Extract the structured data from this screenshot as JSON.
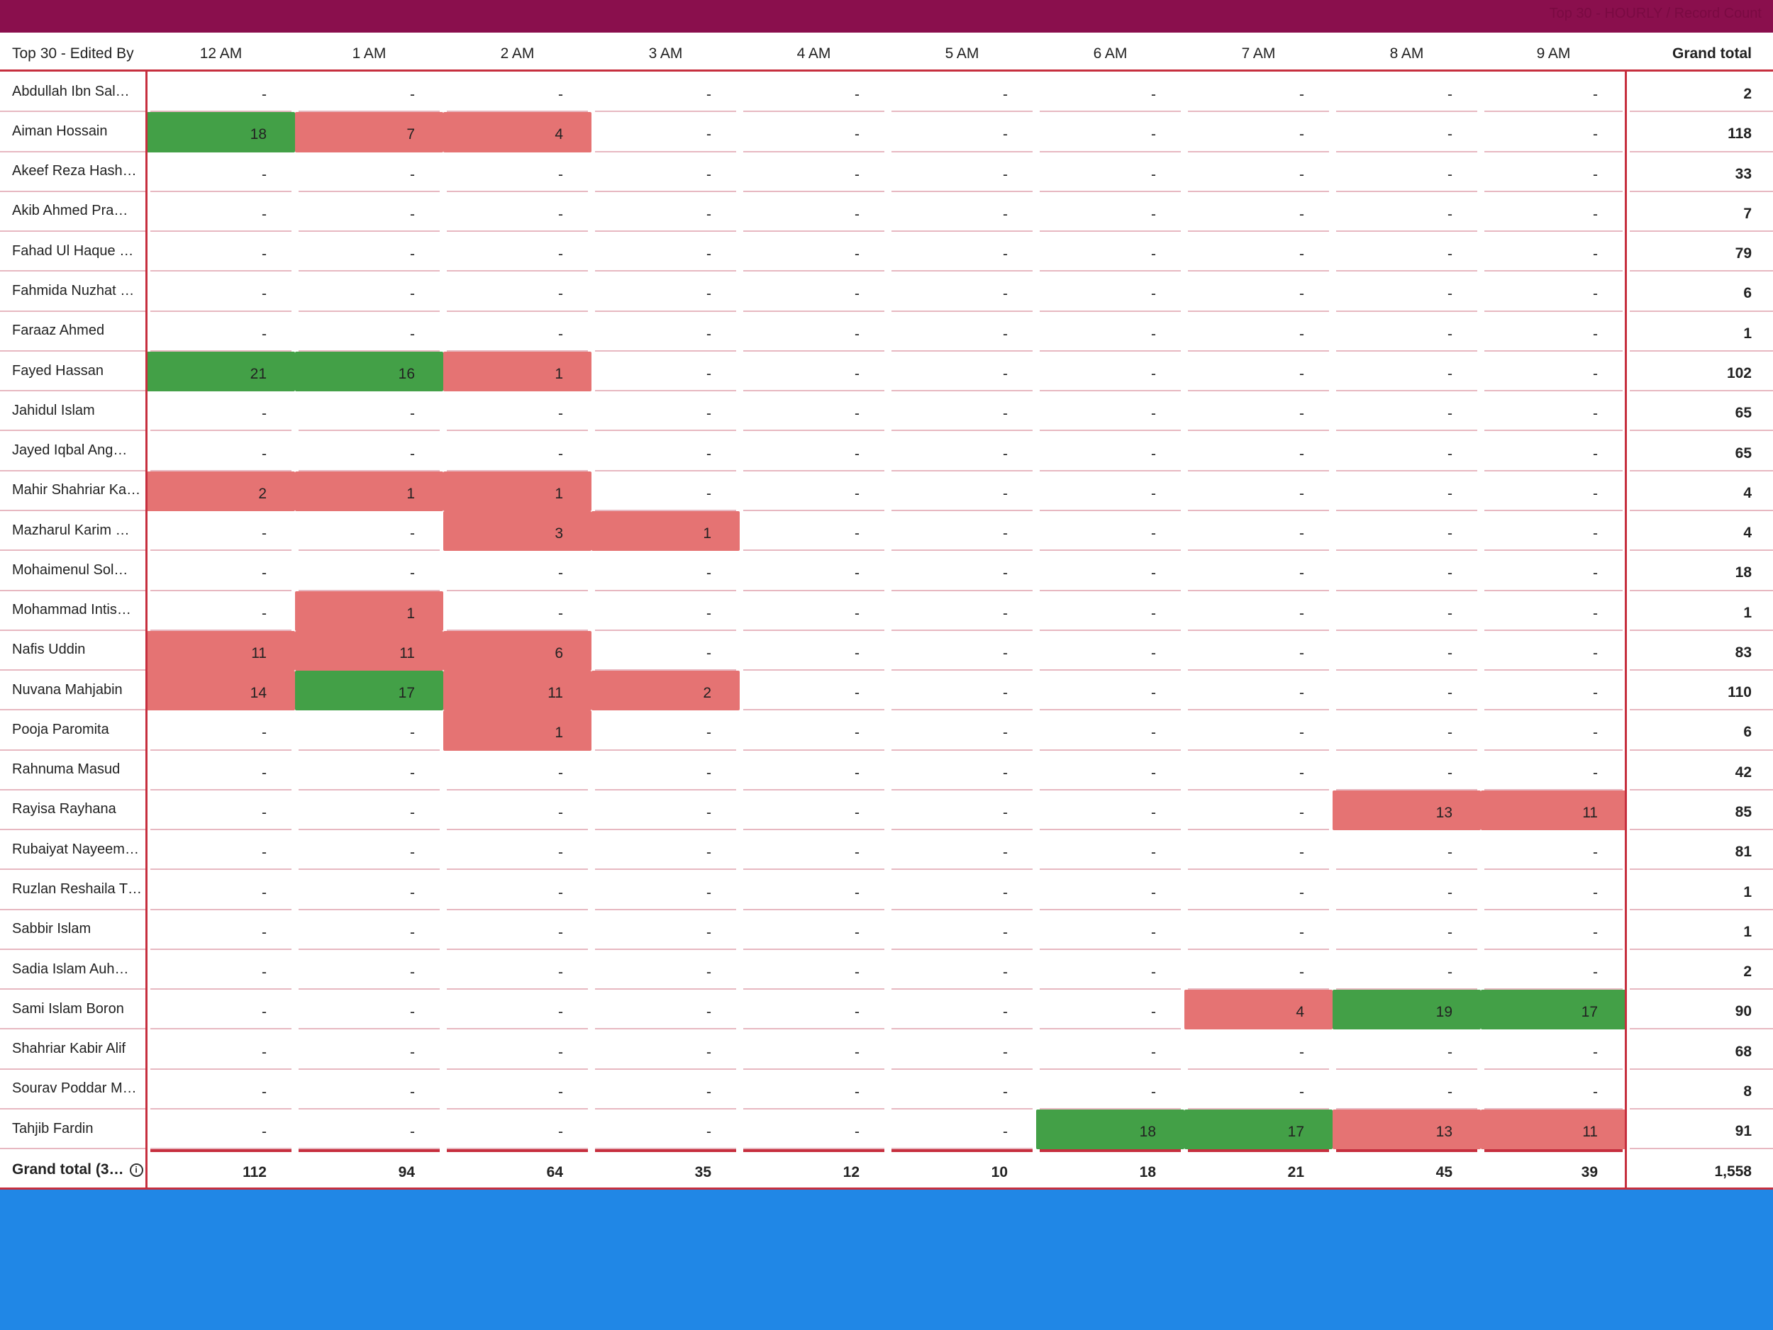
{
  "header_bar": {
    "title": "Top 30 - HOURLY / Record Count"
  },
  "table": {
    "columns": [
      "Top 30 - Edited By",
      "12 AM",
      "1 AM",
      "2 AM",
      "3 AM",
      "4 AM",
      "5 AM",
      "6 AM",
      "7 AM",
      "8 AM",
      "9 AM",
      "Grand total"
    ],
    "rows": [
      {
        "name": "Abdullah Ibn Sal…",
        "values": [
          "-",
          "-",
          "-",
          "-",
          "-",
          "-",
          "-",
          "-",
          "-",
          "-"
        ],
        "styles": [
          "",
          "",
          "",
          "",
          "",
          "",
          "",
          "",
          "",
          ""
        ],
        "total": "2"
      },
      {
        "name": "Aiman Hossain",
        "values": [
          "18",
          "7",
          "4",
          "-",
          "-",
          "-",
          "-",
          "-",
          "-",
          "-"
        ],
        "styles": [
          "green",
          "red",
          "red",
          "",
          "",
          "",
          "",
          "",
          "",
          ""
        ],
        "total": "118"
      },
      {
        "name": "Akeef Reza Hash…",
        "values": [
          "-",
          "-",
          "-",
          "-",
          "-",
          "-",
          "-",
          "-",
          "-",
          "-"
        ],
        "styles": [
          "",
          "",
          "",
          "",
          "",
          "",
          "",
          "",
          "",
          ""
        ],
        "total": "33"
      },
      {
        "name": "Akib Ahmed Pra…",
        "values": [
          "-",
          "-",
          "-",
          "-",
          "-",
          "-",
          "-",
          "-",
          "-",
          "-"
        ],
        "styles": [
          "",
          "",
          "",
          "",
          "",
          "",
          "",
          "",
          "",
          ""
        ],
        "total": "7"
      },
      {
        "name": "Fahad Ul Haque …",
        "values": [
          "-",
          "-",
          "-",
          "-",
          "-",
          "-",
          "-",
          "-",
          "-",
          "-"
        ],
        "styles": [
          "",
          "",
          "",
          "",
          "",
          "",
          "",
          "",
          "",
          ""
        ],
        "total": "79"
      },
      {
        "name": "Fahmida Nuzhat …",
        "values": [
          "-",
          "-",
          "-",
          "-",
          "-",
          "-",
          "-",
          "-",
          "-",
          "-"
        ],
        "styles": [
          "",
          "",
          "",
          "",
          "",
          "",
          "",
          "",
          "",
          ""
        ],
        "total": "6"
      },
      {
        "name": "Faraaz Ahmed",
        "values": [
          "-",
          "-",
          "-",
          "-",
          "-",
          "-",
          "-",
          "-",
          "-",
          "-"
        ],
        "styles": [
          "",
          "",
          "",
          "",
          "",
          "",
          "",
          "",
          "",
          ""
        ],
        "total": "1"
      },
      {
        "name": "Fayed Hassan",
        "values": [
          "21",
          "16",
          "1",
          "-",
          "-",
          "-",
          "-",
          "-",
          "-",
          "-"
        ],
        "styles": [
          "green",
          "green",
          "red",
          "",
          "",
          "",
          "",
          "",
          "",
          ""
        ],
        "total": "102"
      },
      {
        "name": "Jahidul Islam",
        "values": [
          "-",
          "-",
          "-",
          "-",
          "-",
          "-",
          "-",
          "-",
          "-",
          "-"
        ],
        "styles": [
          "",
          "",
          "",
          "",
          "",
          "",
          "",
          "",
          "",
          ""
        ],
        "total": "65"
      },
      {
        "name": "Jayed Iqbal Ang…",
        "values": [
          "-",
          "-",
          "-",
          "-",
          "-",
          "-",
          "-",
          "-",
          "-",
          "-"
        ],
        "styles": [
          "",
          "",
          "",
          "",
          "",
          "",
          "",
          "",
          "",
          ""
        ],
        "total": "65"
      },
      {
        "name": "Mahir Shahriar Ka…",
        "values": [
          "2",
          "1",
          "1",
          "-",
          "-",
          "-",
          "-",
          "-",
          "-",
          "-"
        ],
        "styles": [
          "red",
          "red",
          "red",
          "",
          "",
          "",
          "",
          "",
          "",
          ""
        ],
        "total": "4"
      },
      {
        "name": "Mazharul Karim …",
        "values": [
          "-",
          "-",
          "3",
          "1",
          "-",
          "-",
          "-",
          "-",
          "-",
          "-"
        ],
        "styles": [
          "",
          "",
          "red",
          "red",
          "",
          "",
          "",
          "",
          "",
          ""
        ],
        "total": "4"
      },
      {
        "name": "Mohaimenul Sol…",
        "values": [
          "-",
          "-",
          "-",
          "-",
          "-",
          "-",
          "-",
          "-",
          "-",
          "-"
        ],
        "styles": [
          "",
          "",
          "",
          "",
          "",
          "",
          "",
          "",
          "",
          ""
        ],
        "total": "18"
      },
      {
        "name": "Mohammad Intis…",
        "values": [
          "-",
          "1",
          "-",
          "-",
          "-",
          "-",
          "-",
          "-",
          "-",
          "-"
        ],
        "styles": [
          "",
          "red",
          "",
          "",
          "",
          "",
          "",
          "",
          "",
          ""
        ],
        "total": "1"
      },
      {
        "name": "Nafis Uddin",
        "values": [
          "11",
          "11",
          "6",
          "-",
          "-",
          "-",
          "-",
          "-",
          "-",
          "-"
        ],
        "styles": [
          "red",
          "red",
          "red",
          "",
          "",
          "",
          "",
          "",
          "",
          ""
        ],
        "total": "83"
      },
      {
        "name": "Nuvana Mahjabin",
        "values": [
          "14",
          "17",
          "11",
          "2",
          "-",
          "-",
          "-",
          "-",
          "-",
          "-"
        ],
        "styles": [
          "red",
          "green",
          "red",
          "red",
          "",
          "",
          "",
          "",
          "",
          ""
        ],
        "total": "110"
      },
      {
        "name": "Pooja Paromita",
        "values": [
          "-",
          "-",
          "1",
          "-",
          "-",
          "-",
          "-",
          "-",
          "-",
          "-"
        ],
        "styles": [
          "",
          "",
          "red",
          "",
          "",
          "",
          "",
          "",
          "",
          ""
        ],
        "total": "6"
      },
      {
        "name": "Rahnuma Masud",
        "values": [
          "-",
          "-",
          "-",
          "-",
          "-",
          "-",
          "-",
          "-",
          "-",
          "-"
        ],
        "styles": [
          "",
          "",
          "",
          "",
          "",
          "",
          "",
          "",
          "",
          ""
        ],
        "total": "42"
      },
      {
        "name": "Rayisa Rayhana",
        "values": [
          "-",
          "-",
          "-",
          "-",
          "-",
          "-",
          "-",
          "-",
          "13",
          "11"
        ],
        "styles": [
          "",
          "",
          "",
          "",
          "",
          "",
          "",
          "",
          "red",
          "red"
        ],
        "total": "85"
      },
      {
        "name": "Rubaiyat Nayeem…",
        "values": [
          "-",
          "-",
          "-",
          "-",
          "-",
          "-",
          "-",
          "-",
          "-",
          "-"
        ],
        "styles": [
          "",
          "",
          "",
          "",
          "",
          "",
          "",
          "",
          "",
          ""
        ],
        "total": "81"
      },
      {
        "name": "Ruzlan Reshaila T…",
        "values": [
          "-",
          "-",
          "-",
          "-",
          "-",
          "-",
          "-",
          "-",
          "-",
          "-"
        ],
        "styles": [
          "",
          "",
          "",
          "",
          "",
          "",
          "",
          "",
          "",
          ""
        ],
        "total": "1"
      },
      {
        "name": "Sabbir Islam",
        "values": [
          "-",
          "-",
          "-",
          "-",
          "-",
          "-",
          "-",
          "-",
          "-",
          "-"
        ],
        "styles": [
          "",
          "",
          "",
          "",
          "",
          "",
          "",
          "",
          "",
          ""
        ],
        "total": "1"
      },
      {
        "name": "Sadia Islam Auh…",
        "values": [
          "-",
          "-",
          "-",
          "-",
          "-",
          "-",
          "-",
          "-",
          "-",
          "-"
        ],
        "styles": [
          "",
          "",
          "",
          "",
          "",
          "",
          "",
          "",
          "",
          ""
        ],
        "total": "2"
      },
      {
        "name": "Sami Islam Boron",
        "values": [
          "-",
          "-",
          "-",
          "-",
          "-",
          "-",
          "-",
          "4",
          "19",
          "17"
        ],
        "styles": [
          "",
          "",
          "",
          "",
          "",
          "",
          "",
          "red",
          "green",
          "green"
        ],
        "total": "90"
      },
      {
        "name": "Shahriar Kabir Alif",
        "values": [
          "-",
          "-",
          "-",
          "-",
          "-",
          "-",
          "-",
          "-",
          "-",
          "-"
        ],
        "styles": [
          "",
          "",
          "",
          "",
          "",
          "",
          "",
          "",
          "",
          ""
        ],
        "total": "68"
      },
      {
        "name": "Sourav Poddar M…",
        "values": [
          "-",
          "-",
          "-",
          "-",
          "-",
          "-",
          "-",
          "-",
          "-",
          "-"
        ],
        "styles": [
          "",
          "",
          "",
          "",
          "",
          "",
          "",
          "",
          "",
          ""
        ],
        "total": "8"
      },
      {
        "name": "Tahjib Fardin",
        "values": [
          "-",
          "-",
          "-",
          "-",
          "-",
          "-",
          "18",
          "17",
          "13",
          "11"
        ],
        "styles": [
          "",
          "",
          "",
          "",
          "",
          "",
          "green",
          "green",
          "red",
          "red"
        ],
        "total": "91"
      }
    ],
    "grand_total": {
      "label": "Grand total (3…",
      "values": [
        "112",
        "94",
        "64",
        "35",
        "12",
        "10",
        "18",
        "21",
        "45",
        "39"
      ],
      "total": "1,558"
    }
  },
  "colors": {
    "header_bar": "#8a0f4d",
    "heat_high": "#43a047",
    "heat_low": "#e57373",
    "grid_line": "#c62f3e",
    "row_divider": "#e7b8c1",
    "bottom_area": "#2087e6"
  },
  "icons": {
    "grand_total_info": "info-icon"
  }
}
